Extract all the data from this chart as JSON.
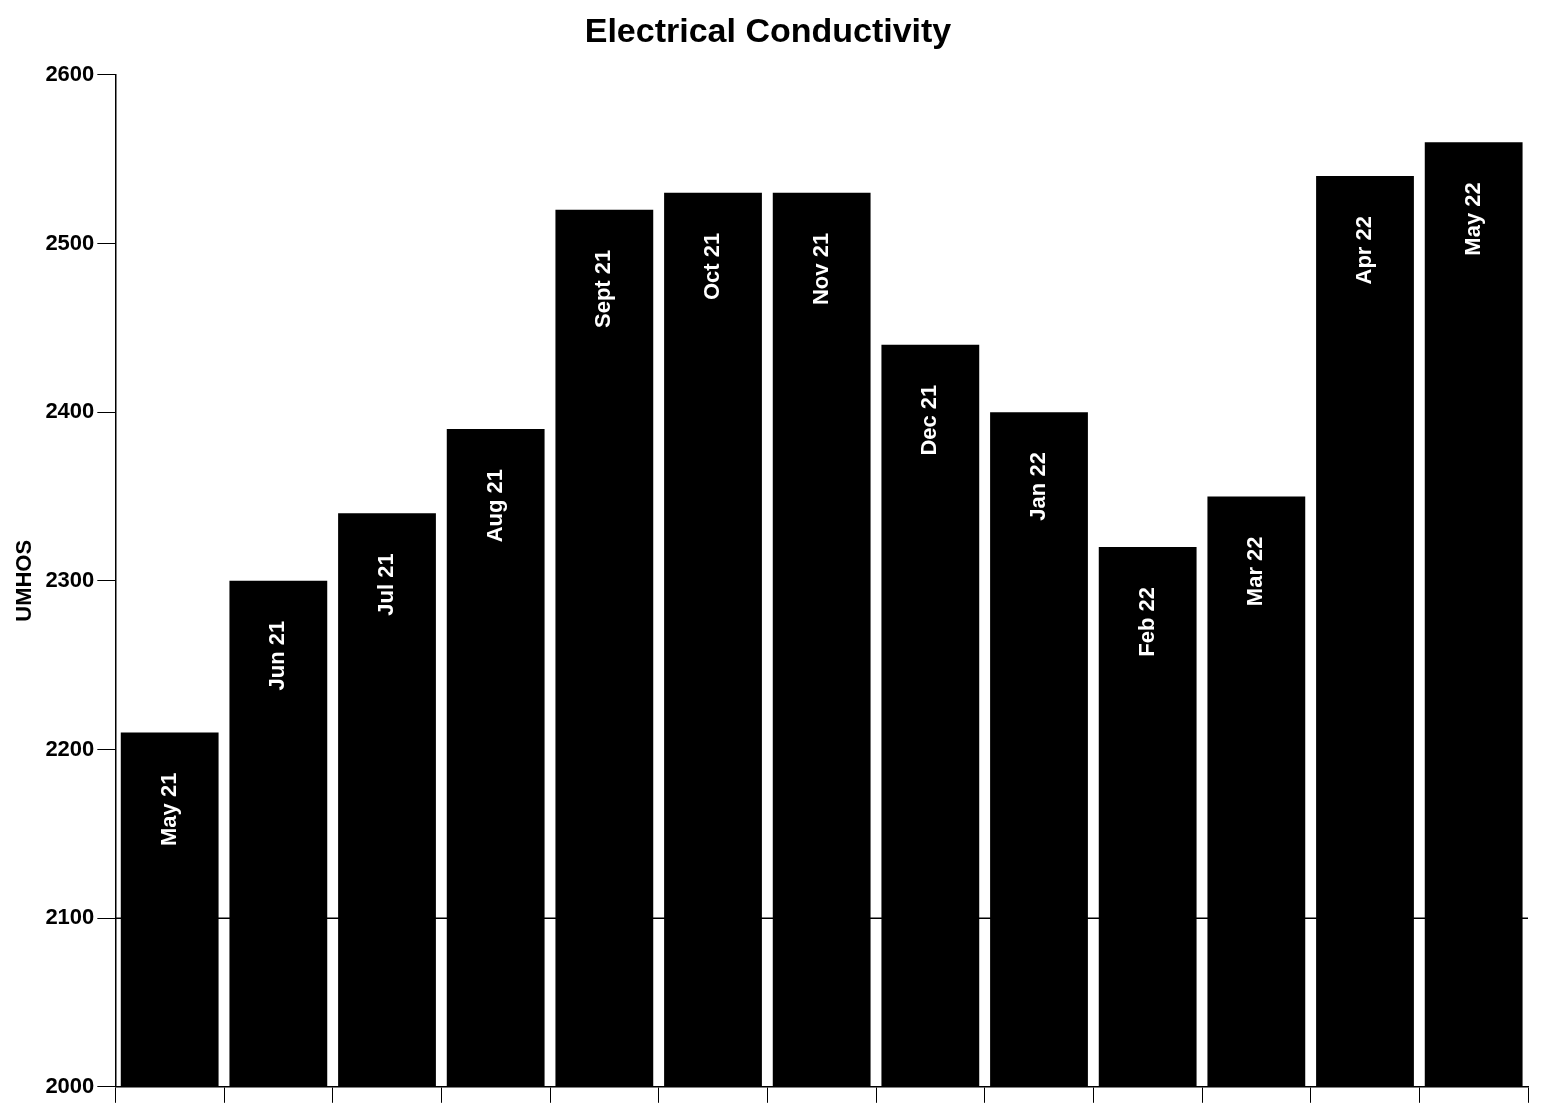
{
  "chart_data": {
    "type": "bar",
    "title": "Electrical Conductivity",
    "ylabel": "UMHOS",
    "categories": [
      "May 21",
      "Jun 21",
      "Jul 21",
      "Aug 21",
      "Sept 21",
      "Oct 21",
      "Nov 21",
      "Dec 21",
      "Jan 22",
      "Feb 22",
      "Mar 22",
      "Apr 22",
      "May 22"
    ],
    "values": [
      2210,
      2300,
      2340,
      2390,
      2520,
      2530,
      2530,
      2440,
      2400,
      2320,
      2350,
      2540,
      2560
    ],
    "color": "#000000",
    "ylim": [
      2000,
      2600
    ],
    "yticks": [
      2000,
      2100,
      2200,
      2300,
      2400,
      2500,
      2600
    ],
    "ref_lines": [
      {
        "axis": "y",
        "value": 2100,
        "color": "#000000"
      }
    ],
    "tick_labels": "y",
    "grid": false,
    "legend": false
  }
}
